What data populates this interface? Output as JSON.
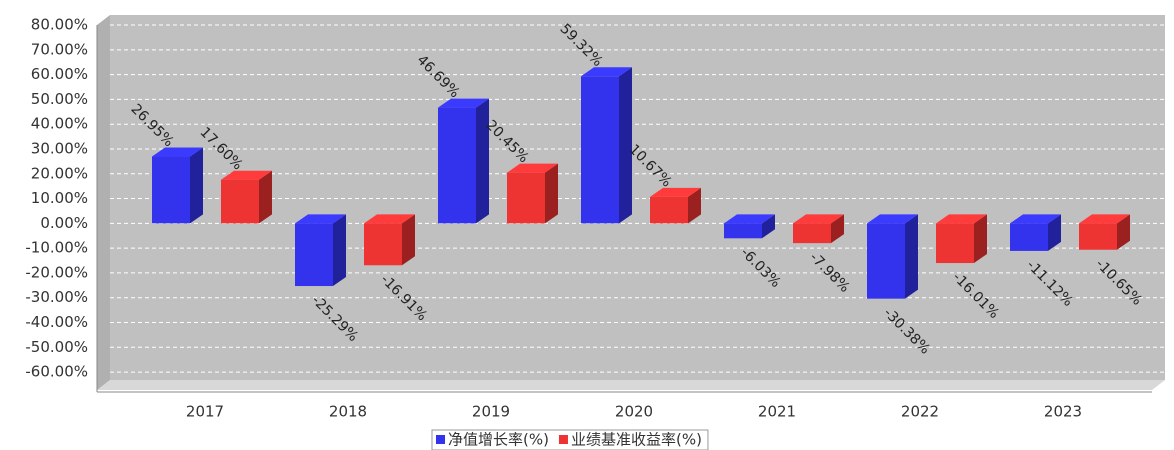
{
  "chart_data": {
    "type": "bar3d",
    "categories": [
      "2017",
      "2018",
      "2019",
      "2020",
      "2021",
      "2022",
      "2023"
    ],
    "series": [
      {
        "name": "净值增长率(%)",
        "color": "#3333ee",
        "values": [
          26.95,
          -25.29,
          46.69,
          59.32,
          -6.03,
          -30.38,
          -11.12
        ],
        "value_labels": [
          "26.95%",
          "-25.29%",
          "46.69%",
          "59.32%",
          "-6.03%",
          "-30.38%",
          "-11.12%"
        ]
      },
      {
        "name": "业绩基准收益率(%)",
        "color": "#ee3333",
        "values": [
          17.6,
          -16.91,
          20.45,
          10.67,
          -7.98,
          -16.01,
          -10.65
        ],
        "value_labels": [
          "17.60%",
          "-16.91%",
          "20.45%",
          "10.67%",
          "-7.98%",
          "-16.01%",
          "-10.65%"
        ]
      }
    ],
    "ylim": [
      -64,
      83
    ],
    "yticks": [
      {
        "value": -60,
        "label": "-60.00%"
      },
      {
        "value": -50,
        "label": "-50.00%"
      },
      {
        "value": -40,
        "label": "-40.00%"
      },
      {
        "value": -30,
        "label": "-30.00%"
      },
      {
        "value": -20,
        "label": "-20.00%"
      },
      {
        "value": -10,
        "label": "-10.00%"
      },
      {
        "value": 0,
        "label": "0.00%"
      },
      {
        "value": 10,
        "label": "10.00%"
      },
      {
        "value": 20,
        "label": "20.00%"
      },
      {
        "value": 30,
        "label": "30.00%"
      },
      {
        "value": 40,
        "label": "40.00%"
      },
      {
        "value": 50,
        "label": "50.00%"
      },
      {
        "value": 60,
        "label": "60.00%"
      },
      {
        "value": 70,
        "label": "70.00%"
      },
      {
        "value": 80,
        "label": "80.00%"
      }
    ],
    "grid": true,
    "legend": "bottom"
  }
}
